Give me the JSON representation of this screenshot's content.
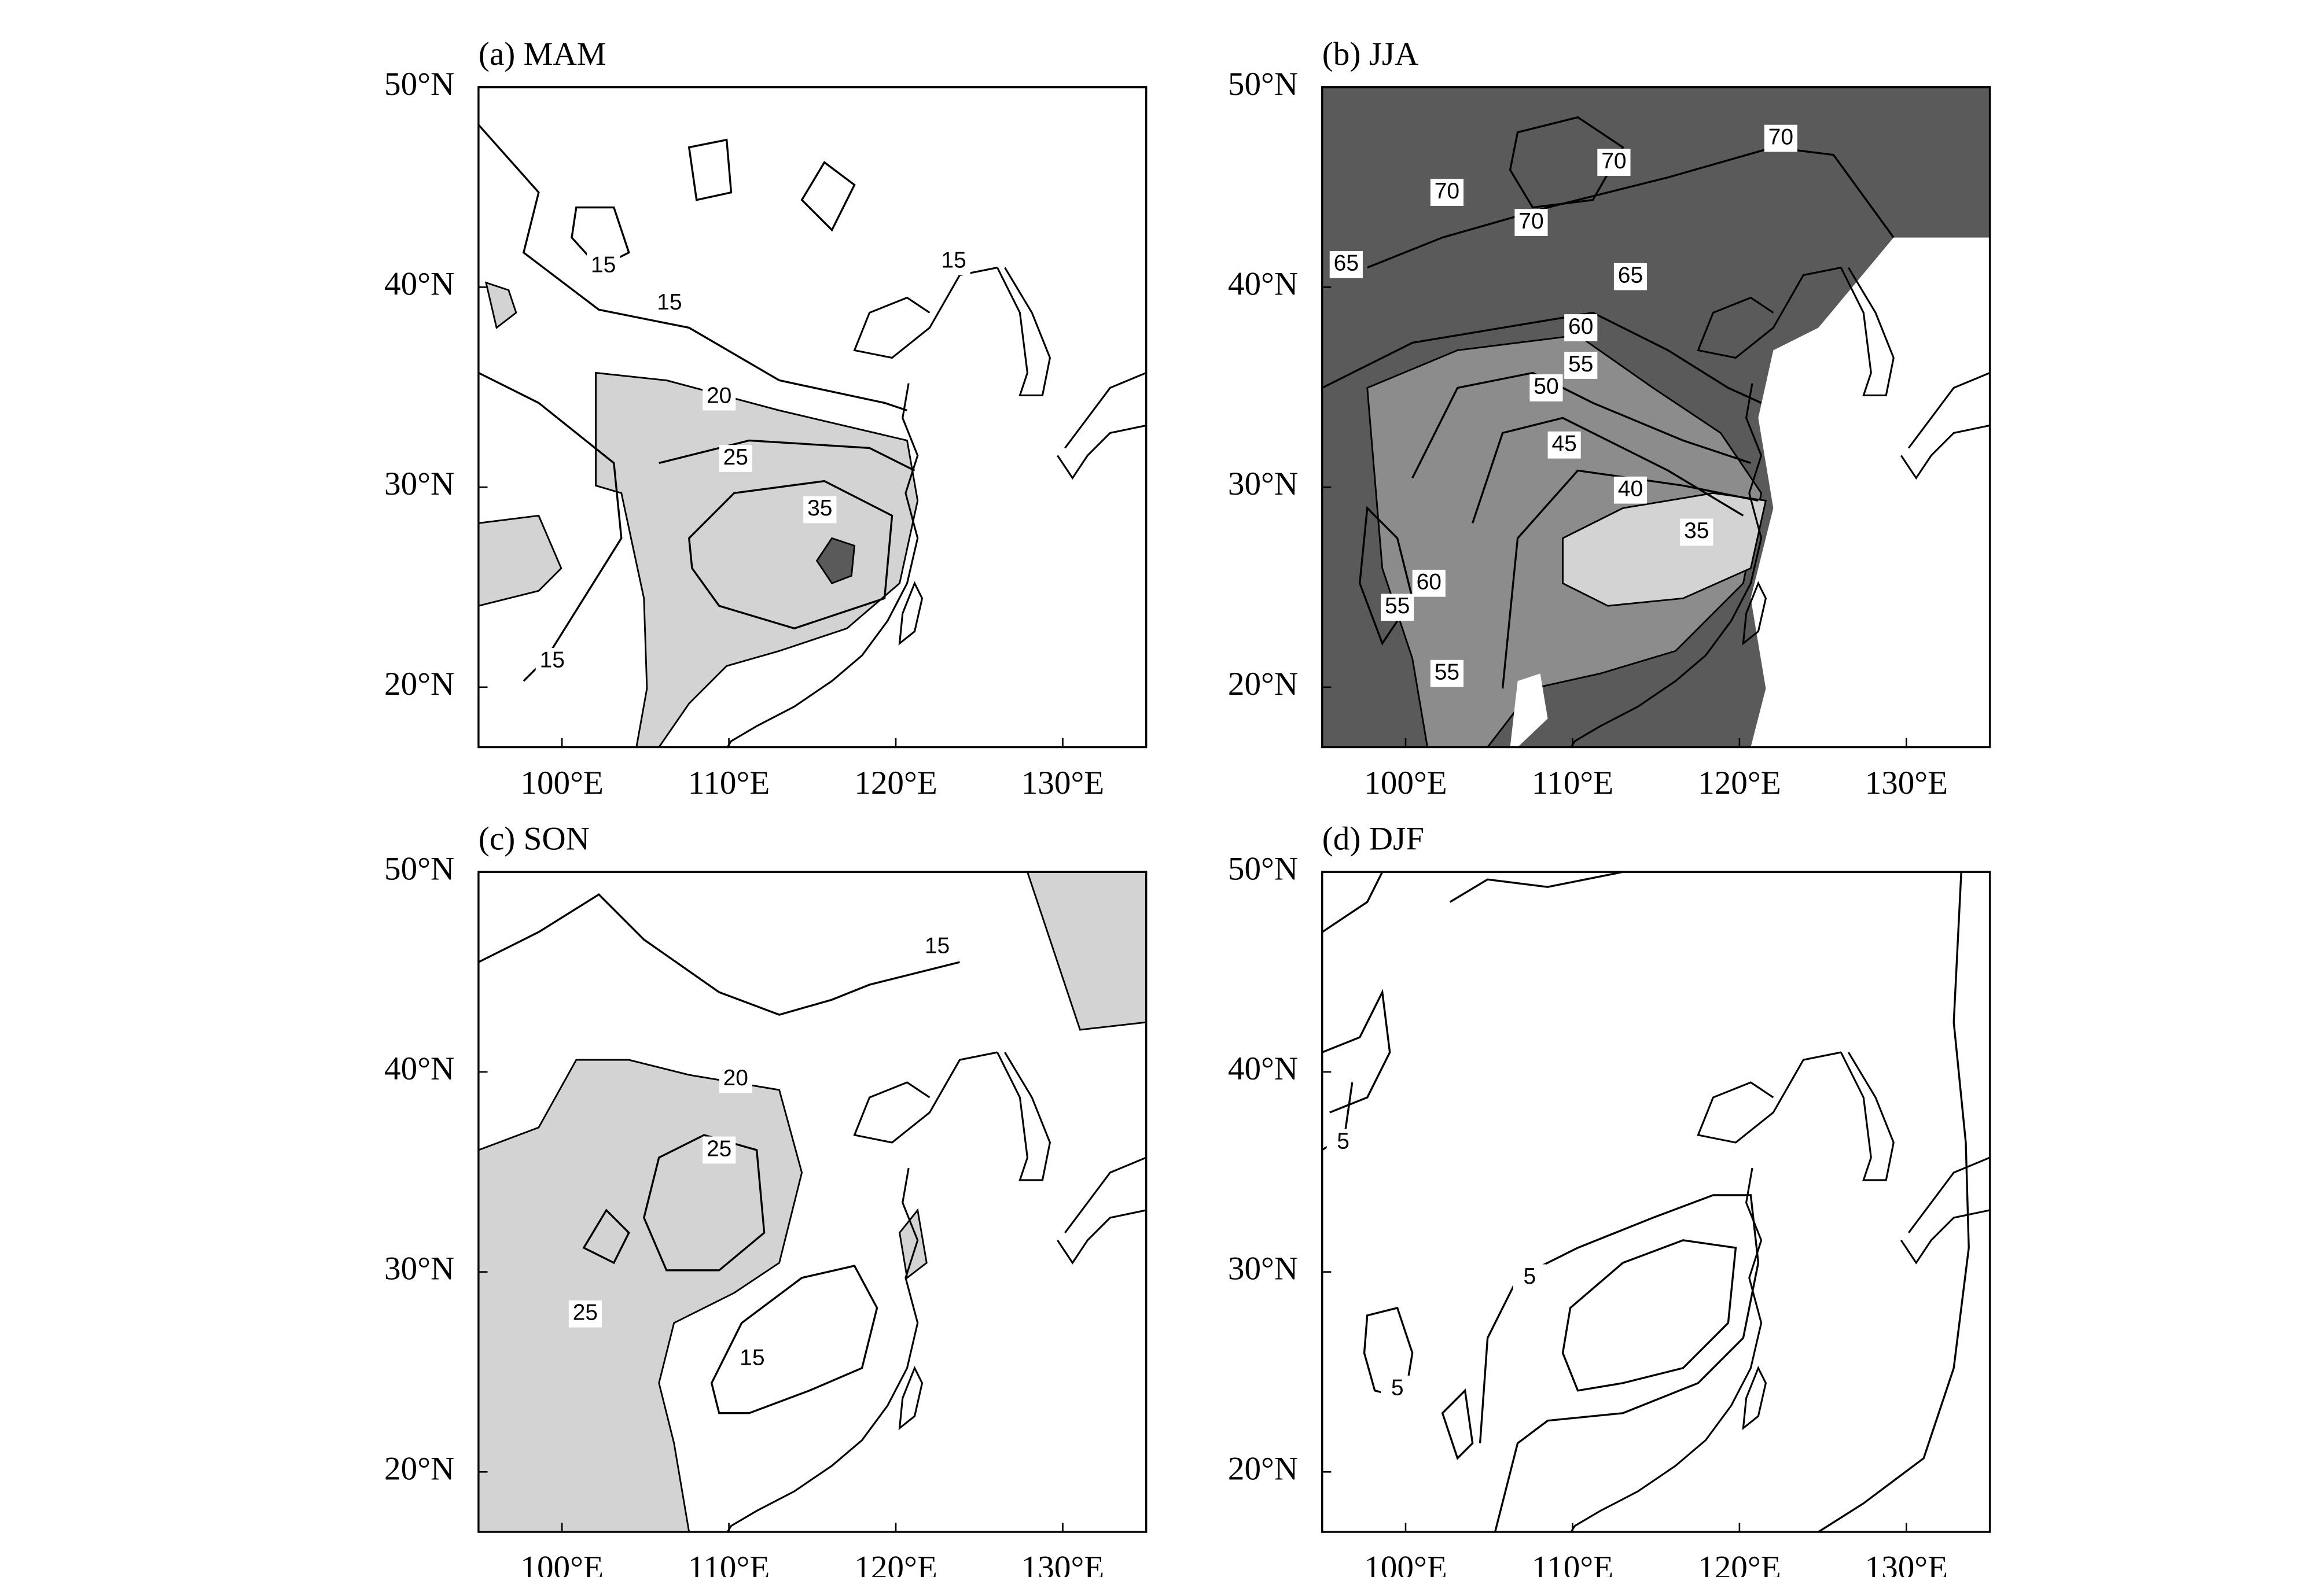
{
  "panels": [
    {
      "title": "(a)  MAM",
      "contour_labels": [
        15,
        15,
        15,
        20,
        25,
        35,
        15
      ]
    },
    {
      "title": "(b)  JJA",
      "contour_labels": [
        70,
        70,
        70,
        70,
        65,
        65,
        60,
        55,
        50,
        45,
        40,
        35,
        60,
        55,
        55
      ]
    },
    {
      "title": "(c)  SON",
      "contour_labels": [
        15,
        20,
        25,
        25,
        15
      ]
    },
    {
      "title": "(d)  DJF",
      "contour_labels": [
        5,
        5,
        5
      ]
    }
  ],
  "xlim": [
    95,
    135
  ],
  "ylim": [
    17,
    50
  ],
  "xticks": [
    {
      "value": 100,
      "label": "100°E"
    },
    {
      "value": 110,
      "label": "110°E"
    },
    {
      "value": 120,
      "label": "120°E"
    },
    {
      "value": 130,
      "label": "130°E"
    }
  ],
  "yticks": [
    {
      "value": 20,
      "label": "20°N"
    },
    {
      "value": 30,
      "label": "30°N"
    },
    {
      "value": 40,
      "label": "40°N"
    },
    {
      "value": 50,
      "label": "50°N"
    }
  ]
}
